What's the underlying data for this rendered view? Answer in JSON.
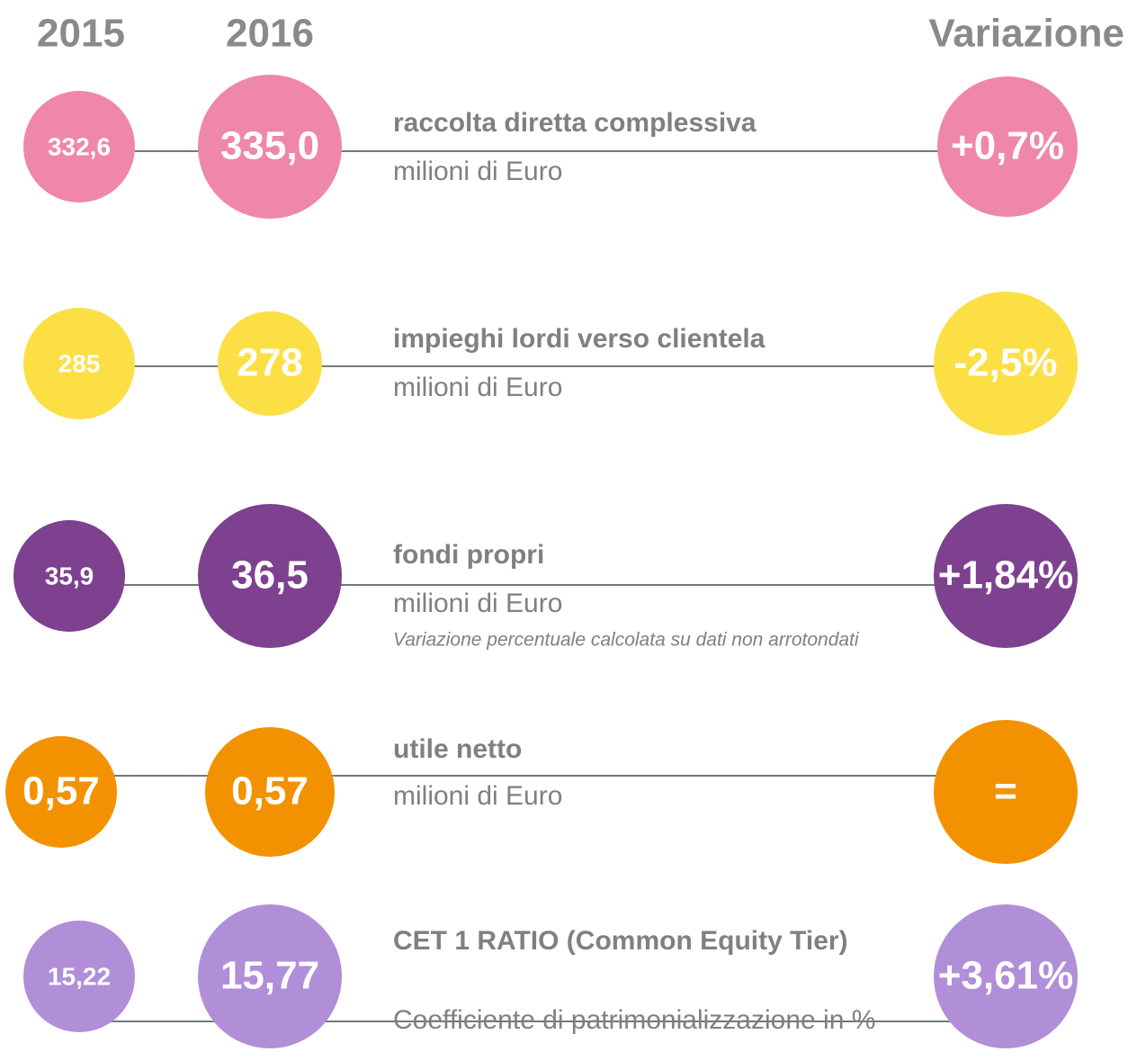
{
  "header": {
    "year_a": "2015",
    "year_b": "2016",
    "change": "Variazione"
  },
  "rows": [
    {
      "a": "332,6",
      "b": "335,0",
      "title": "raccolta diretta complessiva",
      "subtitle": "milioni di Euro",
      "change": "+0,7%",
      "color": "#ef87a8"
    },
    {
      "a": "285",
      "b": "278",
      "title": "impieghi lordi verso clientela",
      "subtitle": "milioni di Euro",
      "change": "-2,5%",
      "color": "#fcdf45"
    },
    {
      "a": "35,9",
      "b": "36,5",
      "title": "fondi propri",
      "subtitle": "milioni di Euro",
      "note": "Variazione percentuale calcolata su dati non arrotondati",
      "change": "+1,84%",
      "color": "#7d418f"
    },
    {
      "a": "0,57",
      "b": "0,57",
      "title": "utile netto",
      "subtitle": "milioni di Euro",
      "change": "=",
      "color": "#f39200"
    },
    {
      "a": "15,22",
      "b": "15,77",
      "title": "CET 1 RATIO (Common Equity Tier)",
      "subtitle": "Coefficiente di patrimonializzazione in %",
      "change": "+3,61%",
      "color": "#b08ed8"
    }
  ]
}
